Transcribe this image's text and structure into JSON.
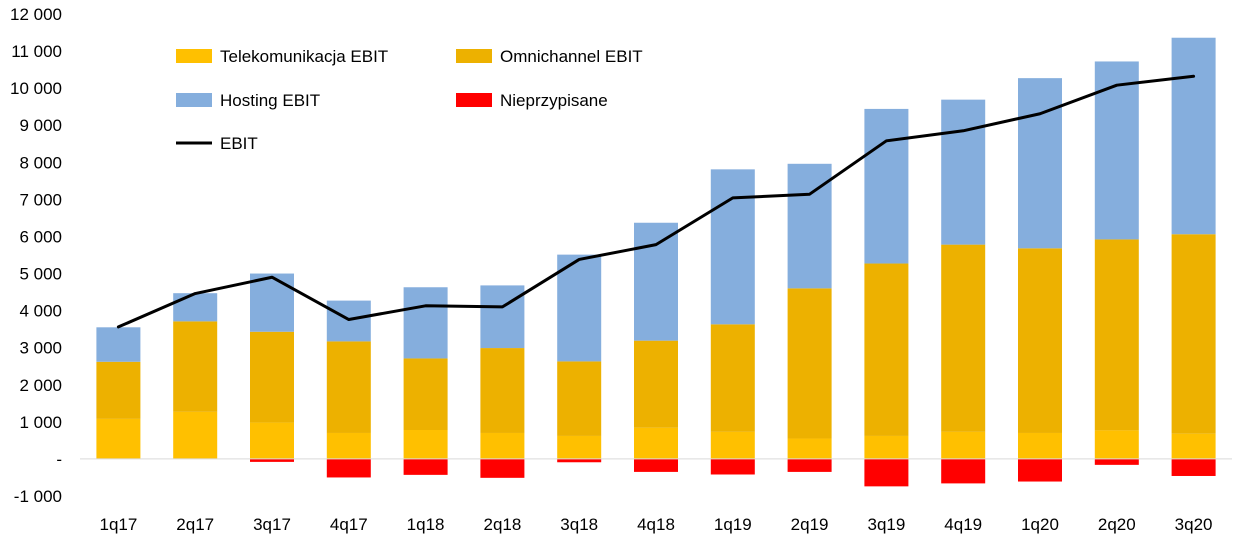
{
  "chart_data": {
    "type": "bar",
    "stacked": true,
    "categories": [
      "1q17",
      "2q17",
      "3q17",
      "4q17",
      "1q18",
      "2q18",
      "3q18",
      "4q18",
      "1q19",
      "2q19",
      "3q19",
      "4q19",
      "1q20",
      "2q20",
      "3q20"
    ],
    "series": [
      {
        "name": "Telekomunikacja EBIT",
        "color": "#FFC000",
        "kind": "bar",
        "values": [
          1080,
          1270,
          980,
          700,
          780,
          700,
          620,
          840,
          730,
          550,
          620,
          730,
          700,
          770,
          680
        ]
      },
      {
        "name": "Omnichannel EBIT",
        "color": "#EDB100",
        "kind": "bar",
        "values": [
          1540,
          2440,
          2450,
          2470,
          1930,
          2290,
          2010,
          2350,
          2900,
          4050,
          4650,
          5050,
          4980,
          5150,
          5380
        ]
      },
      {
        "name": "Hosting EBIT",
        "color": "#85AEDD",
        "kind": "bar",
        "values": [
          930,
          760,
          1570,
          1100,
          1920,
          1690,
          2880,
          3180,
          4180,
          3360,
          4170,
          3910,
          4590,
          4800,
          5300
        ]
      },
      {
        "name": "Nieprzypisane",
        "color": "#FF0000",
        "kind": "bar",
        "values": [
          0,
          0,
          -80,
          -500,
          -430,
          -510,
          -90,
          -350,
          -420,
          -350,
          -740,
          -660,
          -610,
          -160,
          -460
        ]
      },
      {
        "name": "EBIT",
        "color": "#000000",
        "kind": "line",
        "values": [
          3560,
          4460,
          4900,
          3760,
          4130,
          4100,
          5380,
          5780,
          7040,
          7140,
          8580,
          8850,
          9310,
          10080,
          10320
        ]
      }
    ],
    "ylim": [
      -1000,
      12000
    ],
    "ytick_step": 1000,
    "ytick_labels": [
      "-1 000",
      "-",
      "1 000",
      "2 000",
      "3 000",
      "4 000",
      "5 000",
      "6 000",
      "7 000",
      "8 000",
      "9 000",
      "10 000",
      "11 000",
      "12 000"
    ],
    "grid": false,
    "legend_position": "top-left"
  }
}
